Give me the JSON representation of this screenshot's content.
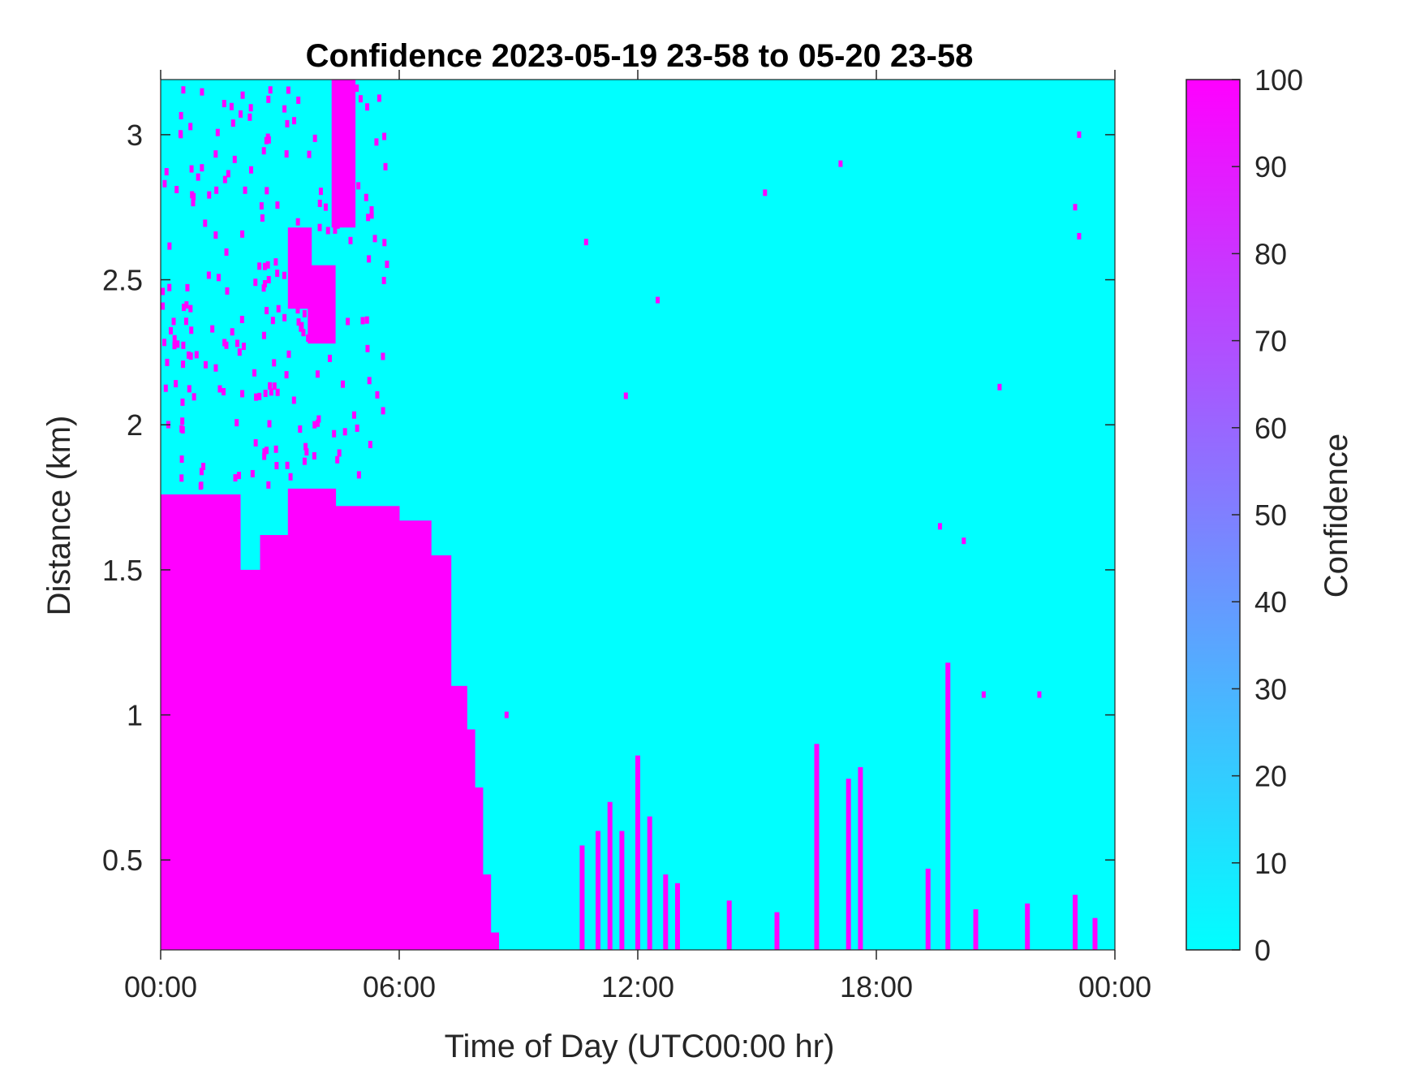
{
  "chart_data": {
    "type": "heatmap",
    "title": "Confidence 2023-05-19 23-58 to 05-20 23-58",
    "xlabel": "Time of Day (UTC00:00 hr)",
    "ylabel": "Distance (km)",
    "colorbar_label": "Confidence",
    "xlim_hours": [
      0,
      24
    ],
    "ylim_km": [
      0.19,
      3.19
    ],
    "x_tick_labels": [
      "00:00",
      "06:00",
      "12:00",
      "18:00",
      "00:00"
    ],
    "x_tick_hours": [
      0,
      6,
      12,
      18,
      24
    ],
    "y_ticks": [
      0.5,
      1,
      1.5,
      2,
      2.5,
      3
    ],
    "y_tick_labels": [
      "0.5",
      "1",
      "1.5",
      "2",
      "2.5",
      "3"
    ],
    "colorbar": {
      "min": 0,
      "max": 100,
      "ticks": [
        0,
        10,
        20,
        30,
        40,
        50,
        60,
        70,
        80,
        90,
        100
      ],
      "tick_labels": [
        "0",
        "10",
        "20",
        "30",
        "40",
        "50",
        "60",
        "70",
        "80",
        "90",
        "100"
      ],
      "color_low": "#00ffff",
      "color_high": "#ff00ff"
    },
    "background_value": 0,
    "high_confidence_regions": [
      {
        "t_start": 0.0,
        "t_end": 2.0,
        "top_km": 1.76
      },
      {
        "t_start": 2.0,
        "t_end": 2.5,
        "top_km": 1.5
      },
      {
        "t_start": 2.5,
        "t_end": 3.2,
        "top_km": 1.62
      },
      {
        "t_start": 3.2,
        "t_end": 4.4,
        "top_km": 1.78
      },
      {
        "t_start": 4.4,
        "t_end": 6.0,
        "top_km": 1.72
      },
      {
        "t_start": 6.0,
        "t_end": 6.8,
        "top_km": 1.67
      },
      {
        "t_start": 6.8,
        "t_end": 7.3,
        "top_km": 1.55
      },
      {
        "t_start": 7.3,
        "t_end": 7.7,
        "top_km": 1.1
      },
      {
        "t_start": 7.7,
        "t_end": 7.9,
        "top_km": 0.95
      },
      {
        "t_start": 7.9,
        "t_end": 8.1,
        "top_km": 0.75
      },
      {
        "t_start": 8.1,
        "t_end": 8.3,
        "top_km": 0.45
      },
      {
        "t_start": 8.3,
        "t_end": 8.5,
        "top_km": 0.25
      }
    ],
    "high_confidence_upper_blobs": [
      {
        "t_start": 4.3,
        "t_end": 4.9,
        "bottom_km": 2.68,
        "top_km": 3.19
      },
      {
        "t_start": 3.2,
        "t_end": 3.8,
        "bottom_km": 2.4,
        "top_km": 2.68
      },
      {
        "t_start": 3.7,
        "t_end": 4.4,
        "bottom_km": 2.28,
        "top_km": 2.55
      }
    ],
    "high_confidence_spikes": [
      {
        "t": 10.6,
        "top_km": 0.55
      },
      {
        "t": 11.0,
        "top_km": 0.6
      },
      {
        "t": 11.3,
        "top_km": 0.7
      },
      {
        "t": 11.6,
        "top_km": 0.6
      },
      {
        "t": 12.0,
        "top_km": 0.86
      },
      {
        "t": 12.3,
        "top_km": 0.65
      },
      {
        "t": 12.7,
        "top_km": 0.45
      },
      {
        "t": 13.0,
        "top_km": 0.42
      },
      {
        "t": 14.3,
        "top_km": 0.36
      },
      {
        "t": 15.5,
        "top_km": 0.32
      },
      {
        "t": 16.5,
        "top_km": 0.9
      },
      {
        "t": 17.3,
        "top_km": 0.78
      },
      {
        "t": 17.6,
        "top_km": 0.82
      },
      {
        "t": 19.3,
        "top_km": 0.47
      },
      {
        "t": 19.8,
        "top_km": 1.18
      },
      {
        "t": 20.5,
        "top_km": 0.33
      },
      {
        "t": 21.8,
        "top_km": 0.35
      },
      {
        "t": 23.0,
        "top_km": 0.38
      },
      {
        "t": 23.5,
        "top_km": 0.3
      }
    ],
    "scattered_points": [
      {
        "t": 17.1,
        "km": 2.9
      },
      {
        "t": 15.2,
        "km": 2.8
      },
      {
        "t": 10.7,
        "km": 2.63
      },
      {
        "t": 12.5,
        "km": 2.43
      },
      {
        "t": 11.7,
        "km": 2.1
      },
      {
        "t": 21.1,
        "km": 2.13
      },
      {
        "t": 19.6,
        "km": 1.65
      },
      {
        "t": 20.2,
        "km": 1.6
      },
      {
        "t": 20.7,
        "km": 1.07
      },
      {
        "t": 22.1,
        "km": 1.07
      },
      {
        "t": 8.7,
        "km": 1.0
      },
      {
        "t": 23.0,
        "km": 2.75
      },
      {
        "t": 23.1,
        "km": 3.0
      },
      {
        "t": 23.1,
        "km": 2.65
      }
    ]
  }
}
